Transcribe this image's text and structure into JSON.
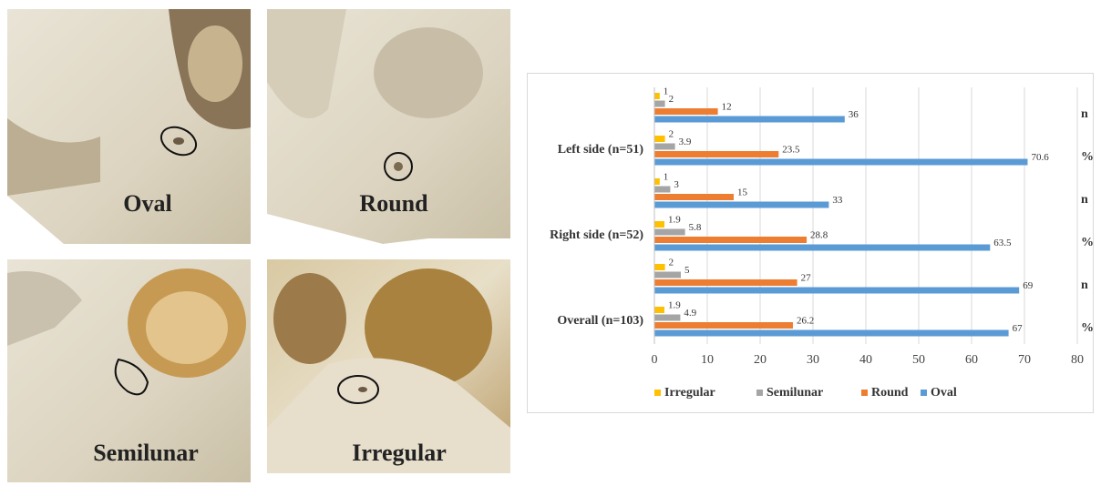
{
  "images": [
    {
      "label": "Oval"
    },
    {
      "label": "Round"
    },
    {
      "label": "Semilunar"
    },
    {
      "label": "Irregular"
    }
  ],
  "chart_data": {
    "type": "hbar",
    "categories": [
      "n",
      "%",
      "n",
      "%",
      "n",
      "%"
    ],
    "group_labels": [
      "Left side (n=51)",
      "Right side (n=52)",
      "Overall (n=103)"
    ],
    "series": [
      {
        "name": "Irregular",
        "color": "#ffc000",
        "values": [
          1,
          2,
          1,
          1.9,
          2,
          1.9
        ]
      },
      {
        "name": "Semilunar",
        "color": "#a5a5a5",
        "values": [
          2,
          3.9,
          3,
          5.8,
          5,
          4.9
        ]
      },
      {
        "name": "Round",
        "color": "#ed7d31",
        "values": [
          12,
          23.5,
          15,
          28.8,
          27,
          26.2
        ]
      },
      {
        "name": "Oval",
        "color": "#5b9bd5",
        "values": [
          36,
          70.6,
          33,
          63.5,
          69,
          67
        ]
      }
    ],
    "xlim": [
      0,
      80
    ],
    "xticks": [
      0,
      10,
      20,
      30,
      40,
      50,
      60,
      70,
      80
    ],
    "grid": true,
    "legend": "bottom"
  }
}
